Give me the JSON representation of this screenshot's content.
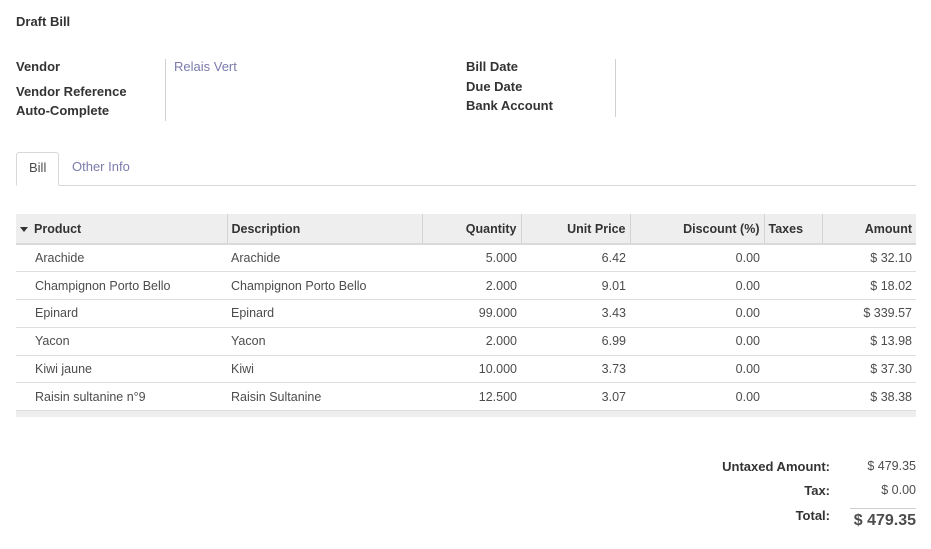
{
  "status": "Draft Bill",
  "form": {
    "vendor_label": "Vendor",
    "vendor_value": "Relais Vert",
    "vendor_reference_label": "Vendor Reference",
    "auto_complete_label": "Auto-Complete",
    "bill_date_label": "Bill Date",
    "due_date_label": "Due Date",
    "bank_account_label": "Bank Account"
  },
  "tabs": [
    {
      "label": "Bill",
      "active": true
    },
    {
      "label": "Other Info",
      "active": false
    }
  ],
  "table": {
    "columns": [
      "Product",
      "Description",
      "Quantity",
      "Unit Price",
      "Discount (%)",
      "Taxes",
      "Amount"
    ],
    "rows": [
      {
        "product": "Arachide",
        "description": "Arachide",
        "quantity": "5.000",
        "unit_price": "6.42",
        "discount": "0.00",
        "taxes": "",
        "amount": "$ 32.10"
      },
      {
        "product": "Champignon Porto Bello",
        "description": "Champignon Porto Bello",
        "quantity": "2.000",
        "unit_price": "9.01",
        "discount": "0.00",
        "taxes": "",
        "amount": "$ 18.02"
      },
      {
        "product": "Epinard",
        "description": "Epinard",
        "quantity": "99.000",
        "unit_price": "3.43",
        "discount": "0.00",
        "taxes": "",
        "amount": "$ 339.57"
      },
      {
        "product": "Yacon",
        "description": "Yacon",
        "quantity": "2.000",
        "unit_price": "6.99",
        "discount": "0.00",
        "taxes": "",
        "amount": "$ 13.98"
      },
      {
        "product": "Kiwi jaune",
        "description": "Kiwi",
        "quantity": "10.000",
        "unit_price": "3.73",
        "discount": "0.00",
        "taxes": "",
        "amount": "$ 37.30"
      },
      {
        "product": "Raisin sultanine n°9",
        "description": "Raisin Sultanine",
        "quantity": "12.500",
        "unit_price": "3.07",
        "discount": "0.00",
        "taxes": "",
        "amount": "$ 38.38"
      }
    ]
  },
  "totals": {
    "untaxed_label": "Untaxed Amount:",
    "untaxed_value": "$ 479.35",
    "tax_label": "Tax:",
    "tax_value": "$ 0.00",
    "total_label": "Total:",
    "total_value": "$ 479.35"
  }
}
